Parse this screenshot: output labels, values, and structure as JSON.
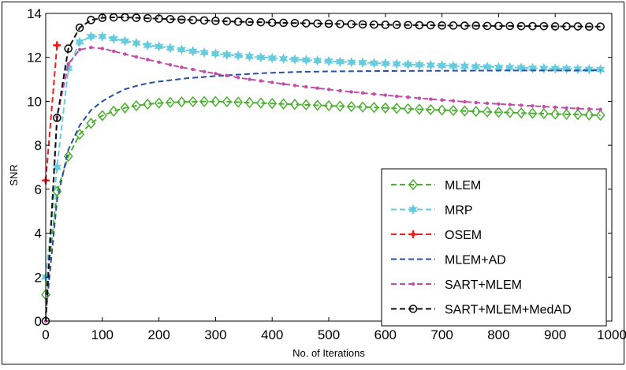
{
  "chart_data": {
    "type": "line",
    "title": "",
    "xlabel": "No. of Iterations",
    "ylabel": "SNR",
    "xlim": [
      0,
      1000
    ],
    "ylim": [
      0,
      14
    ],
    "xticks": [
      0,
      100,
      200,
      300,
      400,
      500,
      600,
      700,
      800,
      900,
      1000
    ],
    "yticks": [
      0,
      2,
      4,
      6,
      8,
      10,
      12,
      14
    ],
    "grid": false,
    "legend_position": "lower-right",
    "series": [
      {
        "name": "MLEM",
        "color": "#4daf32",
        "line_style": "dashed",
        "marker": "diamond",
        "points": [
          [
            0,
            1.2
          ],
          [
            20,
            5.9
          ],
          [
            40,
            7.5
          ],
          [
            60,
            8.5
          ],
          [
            80,
            9.0
          ],
          [
            100,
            9.35
          ],
          [
            120,
            9.55
          ],
          [
            140,
            9.7
          ],
          [
            160,
            9.8
          ],
          [
            180,
            9.87
          ],
          [
            200,
            9.92
          ],
          [
            220,
            9.95
          ],
          [
            240,
            9.97
          ],
          [
            260,
            9.98
          ],
          [
            280,
            9.99
          ],
          [
            300,
            9.99
          ],
          [
            320,
            9.98
          ],
          [
            340,
            9.96
          ],
          [
            360,
            9.94
          ],
          [
            380,
            9.92
          ],
          [
            400,
            9.9
          ],
          [
            420,
            9.88
          ],
          [
            440,
            9.86
          ],
          [
            460,
            9.84
          ],
          [
            480,
            9.82
          ],
          [
            500,
            9.8
          ],
          [
            520,
            9.78
          ],
          [
            540,
            9.76
          ],
          [
            560,
            9.74
          ],
          [
            580,
            9.72
          ],
          [
            600,
            9.7
          ],
          [
            620,
            9.68
          ],
          [
            640,
            9.66
          ],
          [
            660,
            9.64
          ],
          [
            680,
            9.62
          ],
          [
            700,
            9.6
          ],
          [
            720,
            9.58
          ],
          [
            740,
            9.56
          ],
          [
            760,
            9.54
          ],
          [
            780,
            9.52
          ],
          [
            800,
            9.5
          ],
          [
            820,
            9.49
          ],
          [
            840,
            9.47
          ],
          [
            860,
            9.45
          ],
          [
            880,
            9.44
          ],
          [
            900,
            9.42
          ],
          [
            920,
            9.41
          ],
          [
            940,
            9.4
          ],
          [
            960,
            9.38
          ],
          [
            980,
            9.37
          ]
        ]
      },
      {
        "name": "MRP",
        "color": "#66ccdd",
        "line_style": "dashed",
        "marker": "star",
        "points": [
          [
            0,
            2.0
          ],
          [
            20,
            7.0
          ],
          [
            40,
            11.5
          ],
          [
            60,
            12.7
          ],
          [
            80,
            12.95
          ],
          [
            100,
            12.95
          ],
          [
            120,
            12.85
          ],
          [
            140,
            12.75
          ],
          [
            160,
            12.65
          ],
          [
            180,
            12.55
          ],
          [
            200,
            12.5
          ],
          [
            220,
            12.42
          ],
          [
            240,
            12.35
          ],
          [
            260,
            12.28
          ],
          [
            280,
            12.22
          ],
          [
            300,
            12.17
          ],
          [
            320,
            12.12
          ],
          [
            340,
            12.08
          ],
          [
            360,
            12.04
          ],
          [
            380,
            12.0
          ],
          [
            400,
            11.97
          ],
          [
            420,
            11.94
          ],
          [
            440,
            11.91
          ],
          [
            460,
            11.88
          ],
          [
            480,
            11.85
          ],
          [
            500,
            11.83
          ],
          [
            520,
            11.8
          ],
          [
            540,
            11.78
          ],
          [
            560,
            11.76
          ],
          [
            580,
            11.74
          ],
          [
            600,
            11.72
          ],
          [
            620,
            11.7
          ],
          [
            640,
            11.68
          ],
          [
            660,
            11.66
          ],
          [
            680,
            11.65
          ],
          [
            700,
            11.63
          ],
          [
            720,
            11.61
          ],
          [
            740,
            11.6
          ],
          [
            760,
            11.58
          ],
          [
            780,
            11.57
          ],
          [
            800,
            11.55
          ],
          [
            820,
            11.54
          ],
          [
            840,
            11.53
          ],
          [
            860,
            11.51
          ],
          [
            880,
            11.5
          ],
          [
            900,
            11.49
          ],
          [
            920,
            11.48
          ],
          [
            940,
            11.47
          ],
          [
            960,
            11.46
          ],
          [
            980,
            11.45
          ]
        ]
      },
      {
        "name": "OSEM",
        "color": "#e8201e",
        "line_style": "dashed",
        "marker": "plus",
        "points": [
          [
            0,
            6.4
          ],
          [
            20,
            12.55
          ]
        ]
      },
      {
        "name": "MLEM+AD",
        "color": "#2b4fa3",
        "line_style": "dashed",
        "marker": "none",
        "points": [
          [
            0,
            0.3
          ],
          [
            20,
            5.5
          ],
          [
            40,
            7.8
          ],
          [
            60,
            8.9
          ],
          [
            80,
            9.6
          ],
          [
            100,
            10.0
          ],
          [
            120,
            10.3
          ],
          [
            140,
            10.55
          ],
          [
            160,
            10.7
          ],
          [
            180,
            10.82
          ],
          [
            200,
            10.9
          ],
          [
            250,
            11.05
          ],
          [
            300,
            11.15
          ],
          [
            350,
            11.23
          ],
          [
            400,
            11.3
          ],
          [
            450,
            11.34
          ],
          [
            500,
            11.36
          ],
          [
            600,
            11.38
          ],
          [
            700,
            11.39
          ],
          [
            800,
            11.4
          ],
          [
            900,
            11.4
          ],
          [
            980,
            11.41
          ]
        ]
      },
      {
        "name": "SART+MLEM",
        "color": "#c44ca8",
        "line_style": "dashed",
        "marker": "dot",
        "points": [
          [
            0,
            0.0
          ],
          [
            20,
            9.3
          ],
          [
            40,
            11.7
          ],
          [
            60,
            12.35
          ],
          [
            80,
            12.45
          ],
          [
            100,
            12.4
          ],
          [
            120,
            12.28
          ],
          [
            140,
            12.15
          ],
          [
            160,
            12.02
          ],
          [
            180,
            11.9
          ],
          [
            200,
            11.78
          ],
          [
            220,
            11.66
          ],
          [
            240,
            11.55
          ],
          [
            260,
            11.45
          ],
          [
            280,
            11.35
          ],
          [
            300,
            11.26
          ],
          [
            320,
            11.17
          ],
          [
            340,
            11.08
          ],
          [
            360,
            11.0
          ],
          [
            380,
            10.93
          ],
          [
            400,
            10.86
          ],
          [
            420,
            10.79
          ],
          [
            440,
            10.72
          ],
          [
            460,
            10.66
          ],
          [
            480,
            10.6
          ],
          [
            500,
            10.54
          ],
          [
            520,
            10.48
          ],
          [
            540,
            10.43
          ],
          [
            560,
            10.38
          ],
          [
            580,
            10.33
          ],
          [
            600,
            10.28
          ],
          [
            620,
            10.23
          ],
          [
            640,
            10.19
          ],
          [
            660,
            10.14
          ],
          [
            680,
            10.1
          ],
          [
            700,
            10.06
          ],
          [
            720,
            10.02
          ],
          [
            740,
            9.98
          ],
          [
            760,
            9.94
          ],
          [
            780,
            9.91
          ],
          [
            800,
            9.88
          ],
          [
            820,
            9.85
          ],
          [
            840,
            9.82
          ],
          [
            860,
            9.79
          ],
          [
            880,
            9.76
          ],
          [
            900,
            9.73
          ],
          [
            920,
            9.7
          ],
          [
            940,
            9.67
          ],
          [
            960,
            9.65
          ],
          [
            980,
            9.63
          ]
        ]
      },
      {
        "name": "SART+MLEM+MedAD",
        "color": "#111111",
        "line_style": "dashed",
        "marker": "circle",
        "points": [
          [
            0,
            0.0
          ],
          [
            20,
            9.25
          ],
          [
            40,
            12.4
          ],
          [
            60,
            13.35
          ],
          [
            80,
            13.7
          ],
          [
            100,
            13.8
          ],
          [
            120,
            13.82
          ],
          [
            140,
            13.82
          ],
          [
            160,
            13.8
          ],
          [
            180,
            13.78
          ],
          [
            200,
            13.76
          ],
          [
            220,
            13.74
          ],
          [
            240,
            13.72
          ],
          [
            260,
            13.7
          ],
          [
            280,
            13.68
          ],
          [
            300,
            13.66
          ],
          [
            320,
            13.64
          ],
          [
            340,
            13.62
          ],
          [
            360,
            13.61
          ],
          [
            380,
            13.6
          ],
          [
            400,
            13.58
          ],
          [
            420,
            13.57
          ],
          [
            440,
            13.56
          ],
          [
            460,
            13.55
          ],
          [
            480,
            13.54
          ],
          [
            500,
            13.53
          ],
          [
            520,
            13.52
          ],
          [
            540,
            13.51
          ],
          [
            560,
            13.5
          ],
          [
            580,
            13.49
          ],
          [
            600,
            13.48
          ],
          [
            620,
            13.48
          ],
          [
            640,
            13.47
          ],
          [
            660,
            13.46
          ],
          [
            680,
            13.46
          ],
          [
            700,
            13.45
          ],
          [
            720,
            13.45
          ],
          [
            740,
            13.44
          ],
          [
            760,
            13.44
          ],
          [
            780,
            13.43
          ],
          [
            800,
            13.43
          ],
          [
            820,
            13.43
          ],
          [
            840,
            13.42
          ],
          [
            860,
            13.42
          ],
          [
            880,
            13.42
          ],
          [
            900,
            13.41
          ],
          [
            920,
            13.41
          ],
          [
            940,
            13.41
          ],
          [
            960,
            13.4
          ],
          [
            980,
            13.4
          ]
        ]
      }
    ]
  }
}
